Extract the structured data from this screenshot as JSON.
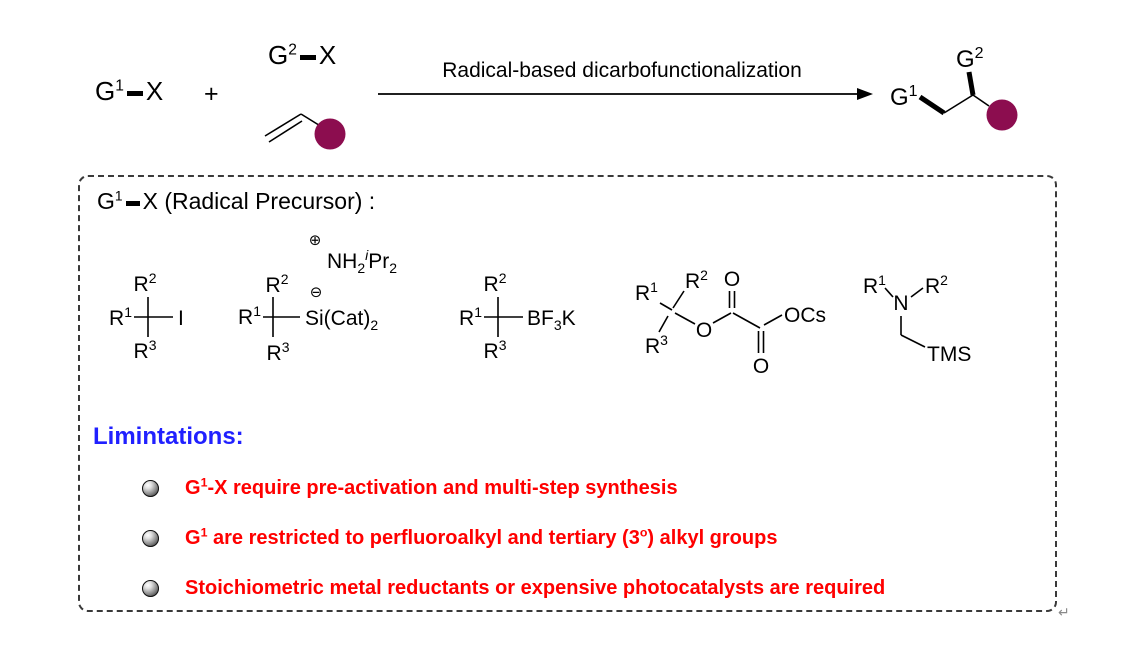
{
  "colors": {
    "accent_maroon": "#8C0D4F",
    "heading_blue": "#2020FF",
    "warning_red": "#FF0000"
  },
  "scheme": {
    "reactant1": {
      "base": "G",
      "sup": "1",
      "x": "X"
    },
    "plus": "+",
    "reactant2": {
      "base": "G",
      "sup": "2",
      "x": "X"
    },
    "arrow_label": "Radical-based dicarbofunctionalization",
    "product": {
      "g1_base": "G",
      "g1_sup": "1",
      "g2_base": "G",
      "g2_sup": "2"
    }
  },
  "box": {
    "header": {
      "base": "G",
      "sup": "1",
      "x": "X",
      "rest": "(Radical Precursor) :"
    },
    "r_labels": {
      "r1": {
        "base": "R",
        "sup": "1"
      },
      "r2": {
        "base": "R",
        "sup": "2"
      },
      "r3": {
        "base": "R",
        "sup": "3"
      }
    },
    "structures": {
      "iodide": {
        "group": "I"
      },
      "silicate": {
        "charge_plus": "⊕",
        "charge_minus": "⊖",
        "counterion": {
          "p1": "NH",
          "s1": "2",
          "p2": "i",
          "p3": "Pr",
          "s2": "2"
        },
        "group": {
          "p1": "Si(Cat)",
          "s1": "2"
        }
      },
      "trifluoroborate": {
        "group": {
          "p1": "BF",
          "s1": "3",
          "p2": "K"
        }
      },
      "oxalate": {
        "ester_o": "O",
        "top_o": "O",
        "bottom_o": "O",
        "group": "OCs"
      },
      "aminosilane": {
        "n": "N",
        "group": "TMS"
      }
    },
    "limitations_heading": "Limintations:",
    "bullets": [
      {
        "segments": [
          {
            "t": "G"
          },
          {
            "sup": "1"
          },
          {
            "t": "-X require pre-activation and multi-step synthesis"
          }
        ]
      },
      {
        "segments": [
          {
            "t": "G"
          },
          {
            "sup": "1"
          },
          {
            "t": " are restricted to perfluoroalkyl and tertiary (3"
          },
          {
            "sup": "o"
          },
          {
            "t": ") alkyl groups"
          }
        ]
      },
      {
        "segments": [
          {
            "t": "Stoichiometric metal reductants or expensive photocatalysts are required"
          }
        ]
      }
    ]
  },
  "return_mark": "↵"
}
